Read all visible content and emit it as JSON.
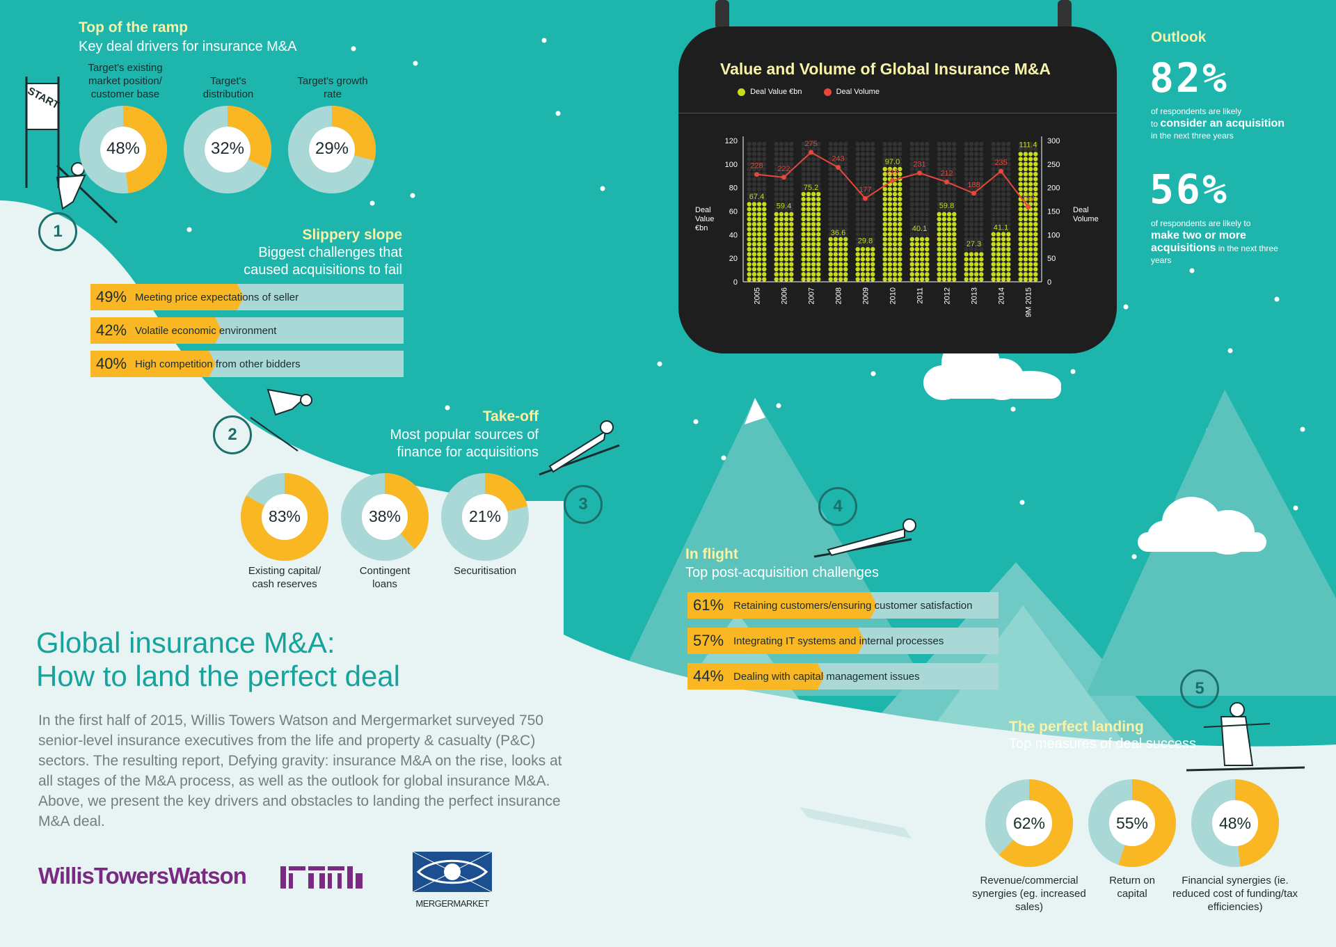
{
  "title": {
    "line1": "Global insurance M&A:",
    "line2": "How to land the perfect deal"
  },
  "intro": "In the first half of 2015, Willis Towers Watson and Mergermarket surveyed 750 senior-level insurance executives from the life and property & casualty (P&C) sectors. The resulting report, Defying gravity: insurance M&A on the rise, looks at all stages of the M&A process, as well as the outlook for global insurance M&A. Above, we present the key drivers and obstacles to landing the perfect insurance M&A deal.",
  "start_sign": "START",
  "steps": [
    "1",
    "2",
    "3",
    "4",
    "5"
  ],
  "ramp": {
    "title": "Top of the ramp",
    "subtitle": "Key deal drivers for insurance M&A",
    "items": [
      {
        "label": "Target's existing market position/ customer base",
        "pct": 48,
        "text": "48%"
      },
      {
        "label": "Target's distribution",
        "pct": 32,
        "text": "32%"
      },
      {
        "label": "Target's growth rate",
        "pct": 29,
        "text": "29%"
      }
    ]
  },
  "slope": {
    "title": "Slippery slope",
    "subtitle1": "Biggest challenges that",
    "subtitle2": "caused acquisitions to fail",
    "items": [
      {
        "pct": 49,
        "text": "49%",
        "label": "Meeting price expectations of seller"
      },
      {
        "pct": 42,
        "text": "42%",
        "label": "Volatile economic environment"
      },
      {
        "pct": 40,
        "text": "40%",
        "label": "High competition from other bidders"
      }
    ]
  },
  "takeoff": {
    "title": "Take-off",
    "subtitle1": "Most popular sources of",
    "subtitle2": "finance for acquisitions",
    "items": [
      {
        "label": "Existing capital/ cash reserves",
        "pct": 83,
        "text": "83%"
      },
      {
        "label": "Contingent loans",
        "pct": 38,
        "text": "38%"
      },
      {
        "label": "Securitisation",
        "pct": 21,
        "text": "21%"
      }
    ]
  },
  "flight": {
    "title": "In flight",
    "subtitle": "Top post-acquisition challenges",
    "items": [
      {
        "pct": 61,
        "text": "61%",
        "label": "Retaining customers/ensuring customer satisfaction"
      },
      {
        "pct": 57,
        "text": "57%",
        "label": "Integrating IT systems and internal processes"
      },
      {
        "pct": 44,
        "text": "44%",
        "label": "Dealing with capital management issues"
      }
    ]
  },
  "landing": {
    "title": "The perfect landing",
    "subtitle": "Top measures of deal success",
    "items": [
      {
        "label": "Revenue/commercial synergies (eg. increased sales)",
        "pct": 62,
        "text": "62%"
      },
      {
        "label": "Return on capital",
        "pct": 55,
        "text": "55%"
      },
      {
        "label": "Financial synergies (ie. reduced cost of funding/tax efficiencies)",
        "pct": 48,
        "text": "48%"
      }
    ]
  },
  "outlook": {
    "title": "Outlook",
    "stat1": {
      "value": "82%",
      "pre": "of respondents are likely",
      "pre2": "to",
      "bold": "consider an acquisition",
      "post": "in the next three years"
    },
    "stat2": {
      "value": "56%",
      "pre": "of respondents are likely to",
      "bold": "make two or more acquisitions",
      "post": "in the next three years"
    }
  },
  "logos": {
    "wtw": "WillisTowersWatson",
    "mm": "MERGERMARKET"
  },
  "colors": {
    "teal": "#1db5ac",
    "light_teal": "#e8f4f4",
    "orange": "#f9b823",
    "donut_track": "#a9d8d6",
    "chart_bg": "#1e1e1e",
    "deal_value": "#c8dc1e",
    "deal_volume": "#e8473c",
    "title_teal": "#16a39b",
    "wtw_purple": "#7a2a83"
  },
  "chart_data": {
    "type": "bar",
    "title": "Value and Volume of Global Insurance M&A",
    "categories": [
      "2005",
      "2006",
      "2007",
      "2008",
      "2009",
      "2010",
      "2011",
      "2012",
      "2013",
      "2014",
      "9M 2015"
    ],
    "series": [
      {
        "name": "Deal Value €bn",
        "type": "bar",
        "axis": "left",
        "values": [
          67.4,
          59.4,
          75.2,
          36.6,
          29.8,
          97.0,
          40.1,
          59.8,
          27.3,
          41.1,
          111.4
        ]
      },
      {
        "name": "Deal Volume",
        "type": "line",
        "axis": "right",
        "values": [
          228,
          222,
          275,
          243,
          177,
          215,
          231,
          212,
          188,
          235,
          159
        ]
      }
    ],
    "value_labels": [
      "67.4",
      "59.4",
      "75.2",
      "36.6",
      "29.8",
      "97.0",
      "40.1",
      "59.8",
      "27.3",
      "41.1",
      "111.4"
    ],
    "volume_labels": [
      "228",
      "222",
      "275",
      "243",
      "177",
      "215",
      "231",
      "212",
      "188",
      "235",
      "159"
    ],
    "ylabel_left": "Deal Value €bn",
    "ylabel_right": "Deal Volume",
    "ylim_left": [
      0,
      120
    ],
    "ylim_right": [
      0,
      300
    ],
    "yticks_left": [
      "120",
      "100",
      "80",
      "60",
      "40",
      "20",
      "0"
    ],
    "yticks_right": [
      "300",
      "250",
      "200",
      "150",
      "100",
      "50",
      "0"
    ],
    "legend_position": "top-left",
    "grid": false
  }
}
